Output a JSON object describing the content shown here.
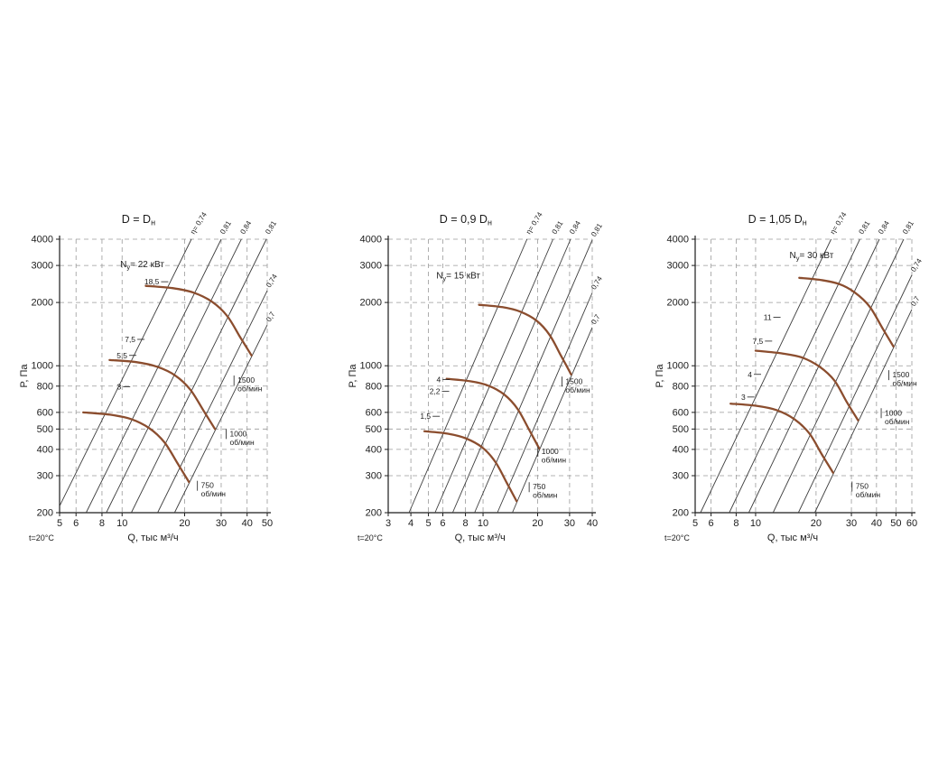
{
  "page": {
    "background": "#ffffff"
  },
  "styles": {
    "curve_color": "#8b4d2e",
    "grid_color": "#9a9a9a",
    "axis_color": "#1c1c1c",
    "line_color": "#3d3d3d",
    "text_color": "#1c1c1c"
  },
  "chart_data": [
    {
      "type": "line",
      "scale": "log-log",
      "title": {
        "pre": "D = D",
        "sub": "н",
        "post": ""
      },
      "power_rating": {
        "pre": "N",
        "sub": "у",
        "post": "= 22 кВт",
        "at": [
          12.5,
          2950
        ]
      },
      "xlabel": "Q, тыс м³/ч",
      "ylabel": "P, Па",
      "temp_label": "t=20°C",
      "x_range": [
        5,
        50
      ],
      "y_range": [
        200,
        4000
      ],
      "x_ticks": [
        5,
        6,
        8,
        10,
        20,
        30,
        40,
        50
      ],
      "y_ticks": [
        200,
        300,
        400,
        500,
        600,
        800,
        1000,
        2000,
        3000,
        4000
      ],
      "efficiency_lines": [
        {
          "k": 8.6,
          "label": "η= 0,74"
        },
        {
          "k": 4.44,
          "label": "0,81"
        },
        {
          "k": 2.84,
          "label": "0,84"
        },
        {
          "k": 1.63,
          "label": "0,81"
        },
        {
          "k": 0.91,
          "label": "0,74"
        },
        {
          "k": 0.625,
          "label": "0,7"
        }
      ],
      "speed_curves": [
        {
          "rpm": 1500,
          "label": [
            "1500",
            "об/мин"
          ],
          "label_at": [
            36,
            830
          ],
          "points": [
            [
              13,
              2400
            ],
            [
              17.5,
              2340
            ],
            [
              22,
              2230
            ],
            [
              27,
              2020
            ],
            [
              32,
              1730
            ],
            [
              37,
              1370
            ],
            [
              42,
              1120
            ]
          ]
        },
        {
          "rpm": 1000,
          "label": [
            "1000",
            "об/мин"
          ],
          "label_at": [
            33,
            462
          ],
          "points": [
            [
              8.7,
              1065
            ],
            [
              11.7,
              1040
            ],
            [
              14.7,
              990
            ],
            [
              18,
              900
            ],
            [
              21.3,
              770
            ],
            [
              24.7,
              610
            ],
            [
              28,
              500
            ]
          ]
        },
        {
          "rpm": 750,
          "label": [
            "750",
            "об/мин"
          ],
          "label_at": [
            24,
            262
          ],
          "points": [
            [
              6.5,
              600
            ],
            [
              8.75,
              585
            ],
            [
              11,
              558
            ],
            [
              13.5,
              505
            ],
            [
              16,
              432
            ],
            [
              18.5,
              343
            ],
            [
              21,
              280
            ]
          ]
        }
      ],
      "power_marks": [
        {
          "label": "18,5",
          "at": [
            15.1,
            2510
          ]
        },
        {
          "label": "7,5",
          "at": [
            11.6,
            1335
          ]
        },
        {
          "label": "5,5",
          "at": [
            10.6,
            1120
          ]
        },
        {
          "label": "3",
          "at": [
            9.9,
            795
          ]
        }
      ]
    },
    {
      "type": "line",
      "scale": "log-log",
      "title": {
        "pre": "D = 0,9 D",
        "sub": "н",
        "post": ""
      },
      "power_rating": {
        "pre": "N",
        "sub": "у",
        "post": "= 15 кВт",
        "at": [
          7.3,
          2600
        ]
      },
      "xlabel": "Q, тыс м³/ч",
      "ylabel": "P, Па",
      "temp_label": "t=20°C",
      "x_range": [
        3,
        40
      ],
      "y_range": [
        200,
        4000
      ],
      "x_ticks": [
        3,
        4,
        5,
        6,
        8,
        10,
        20,
        30,
        40
      ],
      "y_ticks": [
        200,
        300,
        400,
        500,
        600,
        800,
        1000,
        2000,
        3000,
        4000
      ],
      "efficiency_lines": [
        {
          "k": 13.1,
          "label": "η= 0,74"
        },
        {
          "k": 6.77,
          "label": "0,81"
        },
        {
          "k": 4.33,
          "label": "0,84"
        },
        {
          "k": 2.48,
          "label": "0,81"
        },
        {
          "k": 1.39,
          "label": "0,74"
        },
        {
          "k": 0.95,
          "label": "0,7"
        }
      ],
      "speed_curves": [
        {
          "rpm": 1500,
          "label": [
            "1500",
            "об/мин"
          ],
          "label_at": [
            28.5,
            820
          ],
          "points": [
            [
              9.5,
              1950
            ],
            [
              12.8,
              1900
            ],
            [
              16,
              1810
            ],
            [
              19.7,
              1640
            ],
            [
              23.3,
              1400
            ],
            [
              27,
              1110
            ],
            [
              30.6,
              910
            ]
          ]
        },
        {
          "rpm": 1000,
          "label": [
            "1000",
            "об/мин"
          ],
          "label_at": [
            21,
            380
          ],
          "points": [
            [
              6.3,
              867
            ],
            [
              8.5,
              844
            ],
            [
              10.7,
              804
            ],
            [
              13.1,
              729
            ],
            [
              15.5,
              623
            ],
            [
              18,
              494
            ],
            [
              20.4,
              404
            ]
          ]
        },
        {
          "rpm": 750,
          "label": [
            "750",
            "об/мин"
          ],
          "label_at": [
            18.8,
            258
          ],
          "points": [
            [
              4.75,
              488
            ],
            [
              6.4,
              475
            ],
            [
              8,
              452
            ],
            [
              9.85,
              410
            ],
            [
              11.65,
              350
            ],
            [
              13.5,
              278
            ],
            [
              15.3,
              227
            ]
          ]
        }
      ],
      "power_marks": [
        {
          "label": "4",
          "at": [
            5.85,
            860
          ]
        },
        {
          "label": "2,2",
          "at": [
            5.8,
            755
          ]
        },
        {
          "label": "1,5",
          "at": [
            5.15,
            575
          ]
        }
      ]
    },
    {
      "type": "line",
      "scale": "log-log",
      "title": {
        "pre": "D = 1,05 D",
        "sub": "н",
        "post": ""
      },
      "power_rating": {
        "pre": "N",
        "sub": "у",
        "post": "= 30 кВт",
        "at": [
          19,
          3250
        ]
      },
      "xlabel": "Q, тыс м³/ч",
      "ylabel": "P, Па",
      "temp_label": "t=20°C",
      "x_range": [
        5,
        60
      ],
      "y_range": [
        200,
        4000
      ],
      "x_ticks": [
        5,
        6,
        8,
        10,
        20,
        30,
        40,
        50,
        60
      ],
      "y_ticks": [
        200,
        300,
        400,
        500,
        600,
        800,
        1000,
        2000,
        3000,
        4000
      ],
      "efficiency_lines": [
        {
          "k": 7.08,
          "label": "η= 0,74"
        },
        {
          "k": 3.66,
          "label": "0,81"
        },
        {
          "k": 2.34,
          "label": "0,84"
        },
        {
          "k": 1.34,
          "label": "0,81"
        },
        {
          "k": 0.75,
          "label": "0,74"
        },
        {
          "k": 0.515,
          "label": "0,7"
        }
      ],
      "speed_curves": [
        {
          "rpm": 1500,
          "label": [
            "1500",
            "об/мин"
          ],
          "label_at": [
            48,
            880
          ],
          "points": [
            [
              16.5,
              2620
            ],
            [
              21,
              2560
            ],
            [
              26,
              2450
            ],
            [
              31.2,
              2230
            ],
            [
              37,
              1910
            ],
            [
              42.8,
              1510
            ],
            [
              48.6,
              1235
            ]
          ]
        },
        {
          "rpm": 1000,
          "label": [
            "1000",
            "об/мин"
          ],
          "label_at": [
            44,
            580
          ],
          "points": [
            [
              10,
              1180
            ],
            [
              13.5,
              1145
            ],
            [
              17,
              1095
            ],
            [
              20.8,
              990
            ],
            [
              24.7,
              850
            ],
            [
              28.5,
              670
            ],
            [
              32.4,
              550
            ]
          ]
        },
        {
          "rpm": 750,
          "label": [
            "750",
            "об/мин"
          ],
          "label_at": [
            31.5,
            260
          ],
          "points": [
            [
              7.5,
              660
            ],
            [
              10.1,
              645
            ],
            [
              12.75,
              615
            ],
            [
              15.6,
              557
            ],
            [
              18.5,
              477
            ],
            [
              21.4,
              378
            ],
            [
              24.3,
              310
            ]
          ]
        }
      ],
      "power_marks": [
        {
          "label": "11",
          "at": [
            12,
            1700
          ]
        },
        {
          "label": "7,5",
          "at": [
            10.9,
            1310
          ]
        },
        {
          "label": "4",
          "at": [
            9.6,
            910
          ]
        },
        {
          "label": "3",
          "at": [
            8.9,
            710
          ]
        }
      ]
    }
  ]
}
